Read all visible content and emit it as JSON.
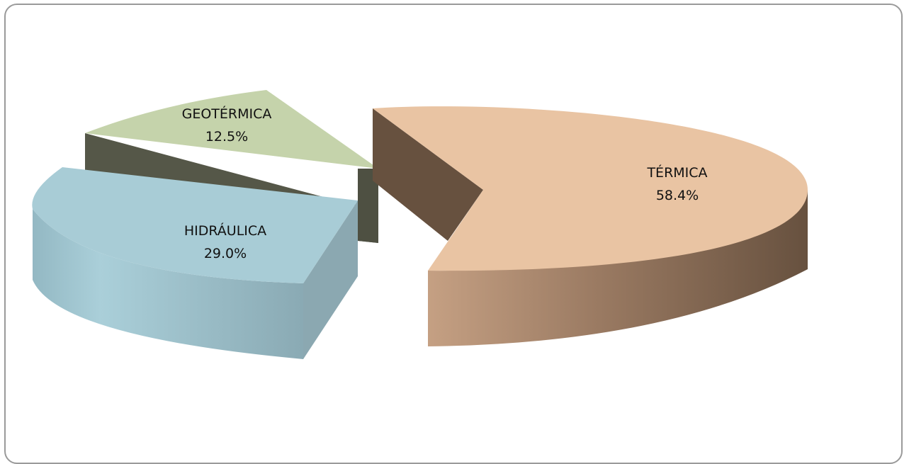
{
  "chart_data": {
    "type": "pie",
    "style": "3d-exploded",
    "slices": [
      {
        "label": "TÉRMICA",
        "value": 58.4,
        "value_label": "58.4%",
        "color": "#e9c4a3"
      },
      {
        "label": "HIDRÁULICA",
        "value": 29.0,
        "value_label": "29.0%",
        "color": "#a8ccd6"
      },
      {
        "label": "GEOTÉRMICA",
        "value": 12.5,
        "value_label": "12.5%",
        "color": "#c5d3ab"
      }
    ]
  }
}
